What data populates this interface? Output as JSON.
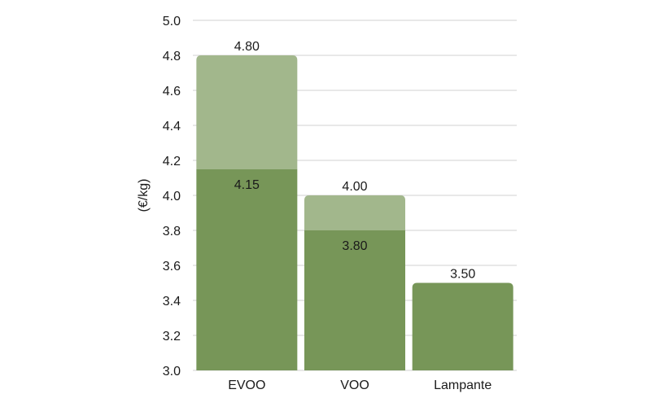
{
  "chart_data": {
    "type": "bar",
    "title": "",
    "xlabel": "",
    "ylabel": "(€/kg)",
    "ylim": [
      3.0,
      5.0
    ],
    "ytick_step": 0.2,
    "grid": true,
    "categories": [
      "EVOO",
      "VOO",
      "Lampante"
    ],
    "series": [
      {
        "name": "",
        "role": "low",
        "values": [
          4.15,
          3.8,
          3.5
        ],
        "labels": [
          "4.15",
          "3.80",
          ""
        ],
        "color": "#779658"
      },
      {
        "name": "",
        "role": "high",
        "values": [
          4.8,
          4.0,
          3.5
        ],
        "labels": [
          "4.80",
          "4.00",
          "3.50"
        ],
        "color": "#a2b78c"
      }
    ],
    "gridline_color": "#d0d0d0"
  }
}
